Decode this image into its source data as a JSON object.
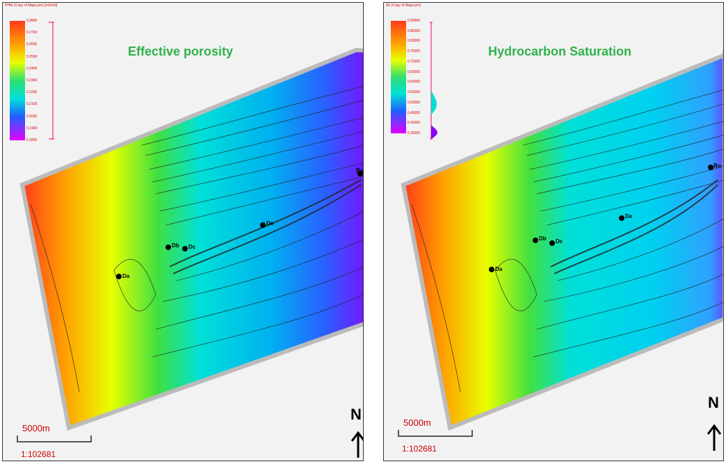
{
  "panels": [
    {
      "legend_title": "PHIE (Copy of Maps.prn) [m3/m3]",
      "title": "Effective porosity",
      "legend_ticks": [
        "0.2800",
        "0.2700",
        "0.2600",
        "0.2500",
        "0.2400",
        "0.2300",
        "0.2200",
        "0.2100",
        "0.2000",
        "0.1900",
        "0.1800"
      ],
      "colors": {
        "west": "#ff3b1a",
        "center": "#00d8d8",
        "east": "#8a00ff"
      }
    },
    {
      "legend_title": "Sh (Copy of Maps.prn)",
      "title": "Hydrocarbon Saturation",
      "legend_ticks": [
        "0.90000",
        "0.85000",
        "0.80000",
        "0.75000",
        "0.70000",
        "0.65000",
        "0.60000",
        "0.55000",
        "0.50000",
        "0.45000",
        "0.40000",
        "0.35000"
      ],
      "colors": {
        "west": "#ff3b1a",
        "center": "#00d8d8",
        "east": "#8a00ff"
      }
    }
  ],
  "wells": [
    "Da",
    "Db",
    "Dc",
    "De",
    "Bu"
  ],
  "scale": {
    "label": "5000m",
    "ratio": "1:102681"
  },
  "north": {
    "label": "N",
    "icon": "north-arrow-icon"
  }
}
